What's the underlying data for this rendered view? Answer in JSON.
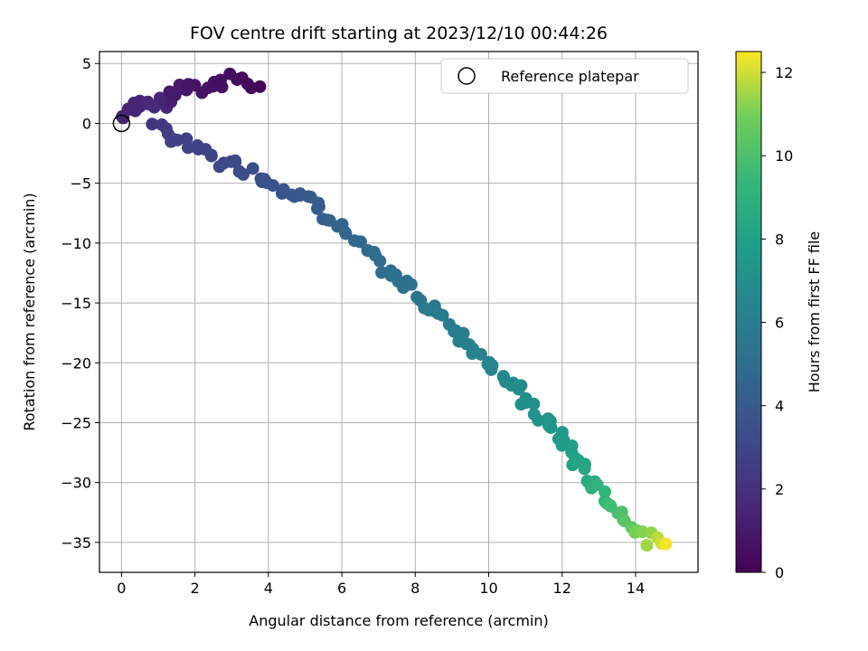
{
  "chart_data": {
    "type": "scatter",
    "title": "FOV centre drift starting at 2023/12/10 00:44:26",
    "xlabel": "Angular distance from reference (arcmin)",
    "ylabel": "Rotation from reference (arcmin)",
    "xlim": [
      -0.6,
      15.7
    ],
    "ylim": [
      -37.5,
      6.0
    ],
    "xticks": [
      0,
      2,
      4,
      6,
      8,
      10,
      12,
      14
    ],
    "yticks": [
      5,
      0,
      -5,
      -10,
      -15,
      -20,
      -25,
      -30,
      -35
    ],
    "grid": true,
    "colormap": "viridis",
    "colorbar": {
      "label": "Hours from first FF file",
      "range": [
        0,
        12.5
      ],
      "ticks": [
        0,
        2,
        4,
        6,
        8,
        10,
        12
      ]
    },
    "legend": {
      "placement": "top-right",
      "entries": [
        {
          "label": "Reference platepar",
          "marker": "open-circle"
        }
      ]
    },
    "reference_point": {
      "x": 0,
      "y": 0
    },
    "drift_path": [
      [
        0.05,
        0.4,
        1.3
      ],
      [
        0.2,
        1.2,
        1.4
      ],
      [
        0.3,
        0.8,
        1.45
      ],
      [
        0.5,
        2.1,
        1.5
      ],
      [
        0.7,
        1.8,
        1.55
      ],
      [
        0.85,
        2.0,
        1.6
      ],
      [
        1.0,
        1.4,
        1.7
      ],
      [
        1.4,
        2.2,
        1.0
      ],
      [
        1.55,
        3.0,
        1.05
      ],
      [
        2.2,
        2.8,
        0.75
      ],
      [
        2.45,
        3.3,
        0.7
      ],
      [
        2.75,
        3.4,
        0.6
      ],
      [
        2.9,
        4.0,
        0.55
      ],
      [
        3.3,
        3.5,
        0.4
      ],
      [
        3.6,
        3.2,
        0.3
      ],
      [
        3.7,
        3.4,
        0.2
      ],
      [
        0.9,
        -0.3,
        2.2
      ],
      [
        1.2,
        -1.0,
        2.5
      ],
      [
        1.6,
        -1.3,
        2.7
      ],
      [
        2.3,
        -2.5,
        2.9
      ],
      [
        2.8,
        -3.3,
        3.1
      ],
      [
        3.3,
        -3.6,
        3.3
      ],
      [
        3.7,
        -4.3,
        3.5
      ],
      [
        4.2,
        -5.0,
        3.7
      ],
      [
        4.6,
        -5.6,
        3.85
      ],
      [
        5.0,
        -6.1,
        4.0
      ],
      [
        5.4,
        -7.0,
        4.15
      ],
      [
        5.7,
        -7.9,
        4.3
      ],
      [
        6.0,
        -8.8,
        4.5
      ],
      [
        6.3,
        -9.8,
        4.65
      ],
      [
        6.7,
        -10.8,
        4.85
      ],
      [
        7.0,
        -11.8,
        5.0
      ],
      [
        7.4,
        -12.9,
        5.2
      ],
      [
        7.8,
        -13.6,
        5.35
      ],
      [
        8.1,
        -14.5,
        5.5
      ],
      [
        8.5,
        -15.5,
        5.7
      ],
      [
        8.8,
        -16.4,
        5.85
      ],
      [
        9.2,
        -17.6,
        6.0
      ],
      [
        9.6,
        -18.8,
        6.2
      ],
      [
        9.9,
        -19.6,
        6.35
      ],
      [
        10.3,
        -20.7,
        6.55
      ],
      [
        10.7,
        -22.0,
        6.75
      ],
      [
        11.0,
        -23.2,
        6.95
      ],
      [
        11.4,
        -24.5,
        7.15
      ],
      [
        11.8,
        -25.6,
        7.4
      ],
      [
        12.1,
        -26.8,
        7.7
      ],
      [
        12.4,
        -28.2,
        8.1
      ],
      [
        12.7,
        -29.5,
        8.5
      ],
      [
        13.0,
        -30.6,
        9.0
      ],
      [
        13.3,
        -31.7,
        9.5
      ],
      [
        13.6,
        -32.6,
        10.0
      ],
      [
        13.9,
        -33.3,
        10.5
      ],
      [
        14.1,
        -34.0,
        11.0
      ],
      [
        14.4,
        -34.8,
        11.5
      ],
      [
        14.6,
        -35.3,
        12.0
      ],
      [
        14.8,
        -35.5,
        12.4
      ]
    ]
  }
}
